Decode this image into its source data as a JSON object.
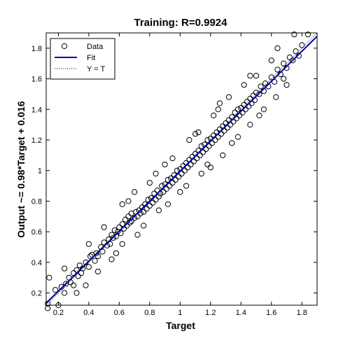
{
  "chart_data": {
    "type": "scatter",
    "title": "Training: R=0.9924",
    "xlabel": "Target",
    "ylabel": "Output ~= 0.98*Target + 0.016",
    "xlim": [
      0.12,
      1.9
    ],
    "ylim": [
      0.12,
      1.9
    ],
    "xticks": [
      0.2,
      0.4,
      0.6,
      0.8,
      1,
      1.2,
      1.4,
      1.6,
      1.8
    ],
    "yticks": [
      0.2,
      0.4,
      0.6,
      0.8,
      1,
      1.2,
      1.4,
      1.6,
      1.8
    ],
    "grid": false,
    "legend": {
      "placement": "top-left",
      "entries": [
        {
          "label": "Data",
          "style": "circle-marker",
          "color": "#000000"
        },
        {
          "label": "Fit",
          "style": "solid-line",
          "color": "#0000aa"
        },
        {
          "label": "Y = T",
          "style": "dotted-line",
          "color": "#000000"
        }
      ]
    },
    "fit": {
      "slope": 0.98,
      "intercept": 0.016,
      "color": "#0000aa"
    },
    "identity_line": {
      "slope": 1,
      "intercept": 0
    },
    "series": [
      {
        "name": "Data",
        "points": [
          [
            0.13,
            0.1
          ],
          [
            0.13,
            0.13
          ],
          [
            0.18,
            0.22
          ],
          [
            0.22,
            0.24
          ],
          [
            0.24,
            0.2
          ],
          [
            0.25,
            0.26
          ],
          [
            0.27,
            0.3
          ],
          [
            0.28,
            0.27
          ],
          [
            0.3,
            0.33
          ],
          [
            0.3,
            0.25
          ],
          [
            0.32,
            0.35
          ],
          [
            0.33,
            0.31
          ],
          [
            0.34,
            0.38
          ],
          [
            0.35,
            0.33
          ],
          [
            0.36,
            0.36
          ],
          [
            0.38,
            0.4
          ],
          [
            0.4,
            0.37
          ],
          [
            0.41,
            0.44
          ],
          [
            0.42,
            0.45
          ],
          [
            0.44,
            0.41
          ],
          [
            0.45,
            0.46
          ],
          [
            0.46,
            0.44
          ],
          [
            0.48,
            0.5
          ],
          [
            0.49,
            0.47
          ],
          [
            0.5,
            0.53
          ],
          [
            0.52,
            0.51
          ],
          [
            0.53,
            0.55
          ],
          [
            0.54,
            0.52
          ],
          [
            0.55,
            0.58
          ],
          [
            0.56,
            0.56
          ],
          [
            0.57,
            0.61
          ],
          [
            0.58,
            0.57
          ],
          [
            0.59,
            0.6
          ],
          [
            0.6,
            0.63
          ],
          [
            0.61,
            0.59
          ],
          [
            0.62,
            0.65
          ],
          [
            0.63,
            0.62
          ],
          [
            0.64,
            0.68
          ],
          [
            0.65,
            0.64
          ],
          [
            0.66,
            0.7
          ],
          [
            0.67,
            0.66
          ],
          [
            0.68,
            0.67
          ],
          [
            0.68,
            0.72
          ],
          [
            0.7,
            0.69
          ],
          [
            0.71,
            0.73
          ],
          [
            0.72,
            0.7
          ],
          [
            0.73,
            0.74
          ],
          [
            0.74,
            0.72
          ],
          [
            0.75,
            0.76
          ],
          [
            0.76,
            0.73
          ],
          [
            0.77,
            0.78
          ],
          [
            0.78,
            0.75
          ],
          [
            0.79,
            0.81
          ],
          [
            0.8,
            0.77
          ],
          [
            0.81,
            0.82
          ],
          [
            0.82,
            0.79
          ],
          [
            0.83,
            0.85
          ],
          [
            0.84,
            0.81
          ],
          [
            0.85,
            0.87
          ],
          [
            0.86,
            0.83
          ],
          [
            0.87,
            0.85
          ],
          [
            0.88,
            0.9
          ],
          [
            0.89,
            0.86
          ],
          [
            0.9,
            0.91
          ],
          [
            0.91,
            0.88
          ],
          [
            0.92,
            0.94
          ],
          [
            0.93,
            0.9
          ],
          [
            0.94,
            0.95
          ],
          [
            0.95,
            0.92
          ],
          [
            0.96,
            0.97
          ],
          [
            0.97,
            0.94
          ],
          [
            0.98,
            1.0
          ],
          [
            0.99,
            0.96
          ],
          [
            1.0,
            1.01
          ],
          [
            1.01,
            0.98
          ],
          [
            1.02,
            1.03
          ],
          [
            1.03,
            1.0
          ],
          [
            1.04,
            1.05
          ],
          [
            1.05,
            1.02
          ],
          [
            1.06,
            1.07
          ],
          [
            1.07,
            1.04
          ],
          [
            1.08,
            1.09
          ],
          [
            1.09,
            1.06
          ],
          [
            1.1,
            1.11
          ],
          [
            1.11,
            1.08
          ],
          [
            1.12,
            1.13
          ],
          [
            1.13,
            1.1
          ],
          [
            1.14,
            1.16
          ],
          [
            1.15,
            1.12
          ],
          [
            1.16,
            1.17
          ],
          [
            1.17,
            1.14
          ],
          [
            1.18,
            1.2
          ],
          [
            1.19,
            1.16
          ],
          [
            1.2,
            1.21
          ],
          [
            1.21,
            1.18
          ],
          [
            1.22,
            1.23
          ],
          [
            1.23,
            1.2
          ],
          [
            1.24,
            1.25
          ],
          [
            1.25,
            1.22
          ],
          [
            1.26,
            1.27
          ],
          [
            1.27,
            1.24
          ],
          [
            1.28,
            1.29
          ],
          [
            1.29,
            1.26
          ],
          [
            1.3,
            1.31
          ],
          [
            1.31,
            1.28
          ],
          [
            1.32,
            1.33
          ],
          [
            1.33,
            1.3
          ],
          [
            1.34,
            1.35
          ],
          [
            1.35,
            1.32
          ],
          [
            1.36,
            1.38
          ],
          [
            1.37,
            1.34
          ],
          [
            1.38,
            1.4
          ],
          [
            1.39,
            1.36
          ],
          [
            1.4,
            1.41
          ],
          [
            1.41,
            1.38
          ],
          [
            1.42,
            1.43
          ],
          [
            1.43,
            1.4
          ],
          [
            1.44,
            1.45
          ],
          [
            1.45,
            1.42
          ],
          [
            1.46,
            1.47
          ],
          [
            1.47,
            1.44
          ],
          [
            1.48,
            1.49
          ],
          [
            1.49,
            1.46
          ],
          [
            1.5,
            1.51
          ],
          [
            1.52,
            1.5
          ],
          [
            1.53,
            1.55
          ],
          [
            1.55,
            1.52
          ],
          [
            1.56,
            1.57
          ],
          [
            1.58,
            1.55
          ],
          [
            1.6,
            1.61
          ],
          [
            1.62,
            1.58
          ],
          [
            1.64,
            1.66
          ],
          [
            1.66,
            1.63
          ],
          [
            1.68,
            1.7
          ],
          [
            1.7,
            1.67
          ],
          [
            1.72,
            1.74
          ],
          [
            1.74,
            1.72
          ],
          [
            1.76,
            1.78
          ],
          [
            1.78,
            1.75
          ],
          [
            1.8,
            1.82
          ],
          [
            0.55,
            0.42
          ],
          [
            0.62,
            0.52
          ],
          [
            0.7,
            0.86
          ],
          [
            0.8,
            0.92
          ],
          [
            0.86,
            0.74
          ],
          [
            0.95,
            1.08
          ],
          [
            1.04,
            0.9
          ],
          [
            1.12,
            1.25
          ],
          [
            1.18,
            1.04
          ],
          [
            1.25,
            1.4
          ],
          [
            1.28,
            1.1
          ],
          [
            1.32,
            1.48
          ],
          [
            1.38,
            1.22
          ],
          [
            1.42,
            1.56
          ],
          [
            1.46,
            1.3
          ],
          [
            1.5,
            1.62
          ],
          [
            1.55,
            1.4
          ],
          [
            1.6,
            1.72
          ],
          [
            1.63,
            1.48
          ],
          [
            1.68,
            1.6
          ],
          [
            0.24,
            0.36
          ],
          [
            0.32,
            0.2
          ],
          [
            0.4,
            0.52
          ],
          [
            0.46,
            0.34
          ],
          [
            0.62,
            0.78
          ],
          [
            0.72,
            0.58
          ],
          [
            0.9,
            1.04
          ],
          [
            1.0,
            0.86
          ],
          [
            1.1,
            1.24
          ],
          [
            1.2,
            1.02
          ],
          [
            1.26,
            1.44
          ],
          [
            1.34,
            1.18
          ],
          [
            1.46,
            1.62
          ],
          [
            1.52,
            1.36
          ],
          [
            1.64,
            1.8
          ],
          [
            1.7,
            1.56
          ],
          [
            1.75,
            1.89
          ],
          [
            1.84,
            1.89
          ],
          [
            0.14,
            0.3
          ],
          [
            0.2,
            0.12
          ],
          [
            0.38,
            0.25
          ],
          [
            0.5,
            0.63
          ],
          [
            0.58,
            0.46
          ],
          [
            0.66,
            0.8
          ],
          [
            0.76,
            0.64
          ],
          [
            0.84,
            0.98
          ],
          [
            0.92,
            0.78
          ],
          [
            1.06,
            1.2
          ],
          [
            1.14,
            0.98
          ],
          [
            1.22,
            1.36
          ]
        ]
      }
    ]
  }
}
